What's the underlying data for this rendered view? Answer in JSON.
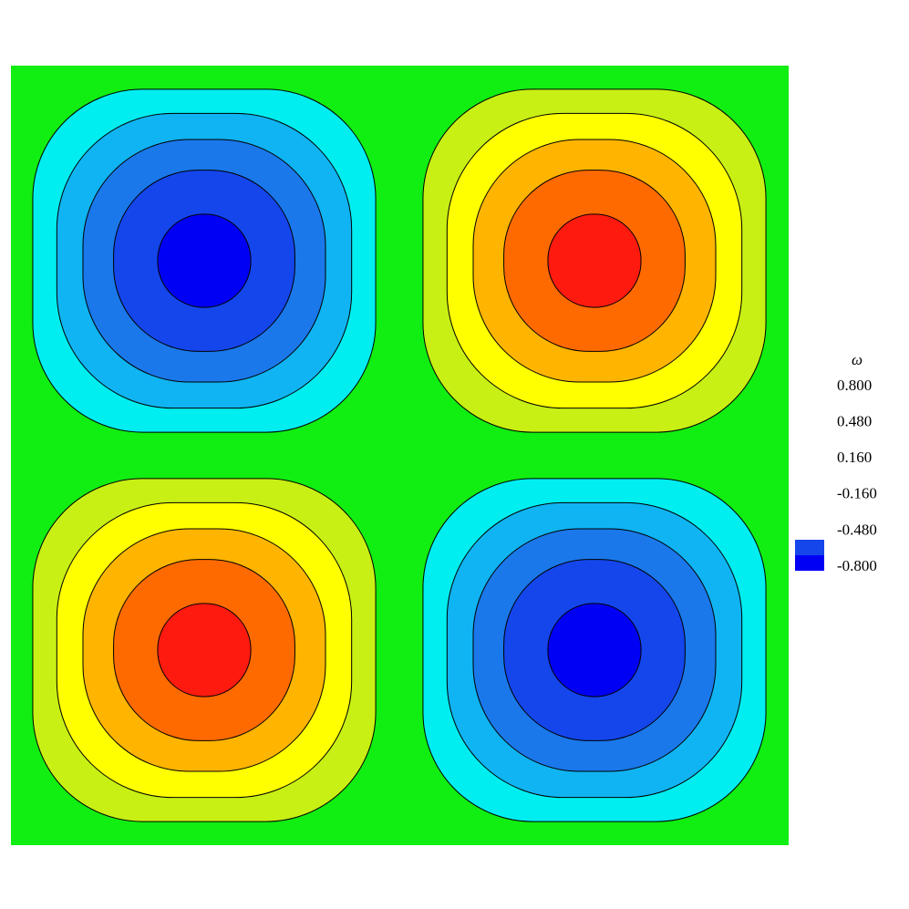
{
  "chart_data": {
    "type": "contour",
    "legend_title": "ω",
    "legend_ticks": [
      {
        "value": 0.8,
        "label": "0.800"
      },
      {
        "value": 0.48,
        "label": "0.480"
      },
      {
        "value": 0.16,
        "label": "0.160"
      },
      {
        "value": -0.16,
        "label": "-0.160"
      },
      {
        "value": -0.48,
        "label": "-0.480"
      },
      {
        "value": -0.8,
        "label": "-0.800"
      }
    ],
    "levels": [
      -0.8,
      -0.64,
      -0.48,
      -0.32,
      -0.16,
      0,
      0.16,
      0.32,
      0.48,
      0.64,
      0.8
    ],
    "colors": [
      "#0000f4",
      "#1446ec",
      "#1a78ea",
      "#10b4f2",
      "#00eef0",
      "#24eeb0",
      "#7cee2a",
      "#c8f014",
      "#ffff00",
      "#ffb400",
      "#ff6a00",
      "#ff1a10"
    ],
    "zlim": [
      -0.86,
      0.86
    ]
  }
}
